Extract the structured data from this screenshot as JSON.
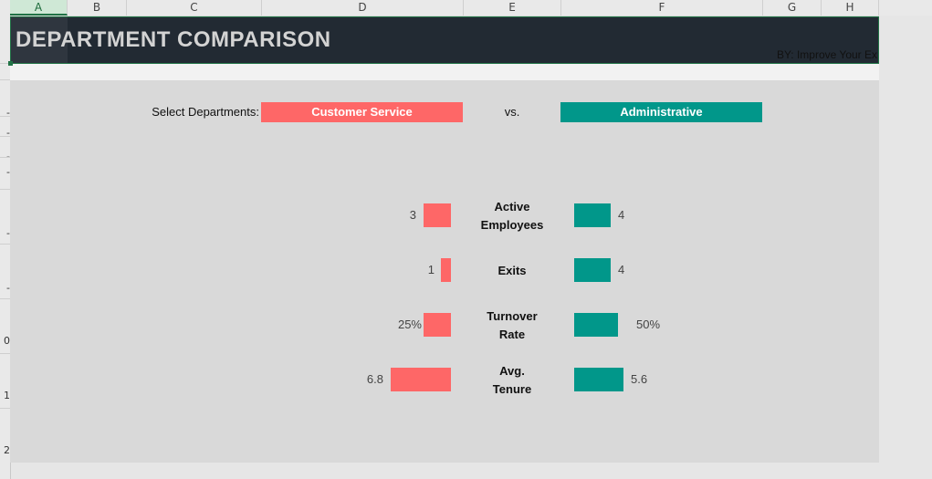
{
  "columns": [
    "A",
    "B",
    "C",
    "D",
    "E",
    "F",
    "G",
    "H"
  ],
  "rows": [
    "-",
    "-",
    "-",
    "-",
    "-",
    "-",
    "-",
    "0",
    "1",
    "2"
  ],
  "title": "DEPARTMENT COMPARISON",
  "byline": "BY: Improve Your Ex",
  "selector": {
    "label": "Select Departments:",
    "left_department": "Customer Service",
    "vs_label": "vs.",
    "right_department": "Administrative"
  },
  "colors": {
    "left": "#fe6767",
    "right": "#01978a",
    "banner": "#222a33",
    "accent": "#217346"
  },
  "metrics": [
    {
      "label_line1": "Active",
      "label_line2": "Employees",
      "left_label": "3",
      "right_label": "4",
      "left_value": 3,
      "right_value": 4
    },
    {
      "label_line1": "Exits",
      "label_line2": "",
      "left_label": "1",
      "right_label": "4",
      "left_value": 1,
      "right_value": 4
    },
    {
      "label_line1": "Turnover",
      "label_line2": "Rate",
      "left_label": "25%",
      "right_label": "50%",
      "left_value": 0.25,
      "right_value": 0.5
    },
    {
      "label_line1": "Avg.",
      "label_line2": "Tenure",
      "left_label": "6.8",
      "right_label": "5.6",
      "left_value": 6.8,
      "right_value": 5.6
    }
  ]
}
